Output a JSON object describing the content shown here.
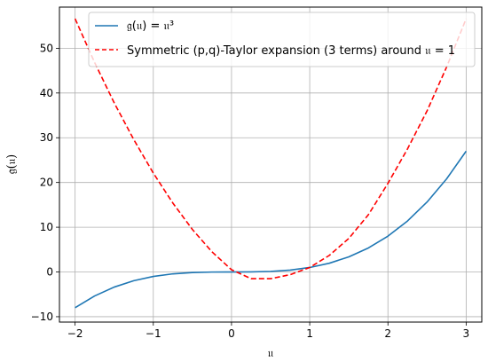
{
  "chart_data": {
    "type": "line",
    "title": "",
    "xlabel": "𝔲",
    "ylabel": "𝔤(𝔲)",
    "xlim": [
      -2.2,
      3.2
    ],
    "ylim": [
      -11.2,
      59.2
    ],
    "xticks": [
      -2,
      -1,
      0,
      1,
      2,
      3
    ],
    "xtick_labels": [
      "−2",
      "−1",
      "0",
      "1",
      "2",
      "3"
    ],
    "yticks": [
      -10,
      0,
      10,
      20,
      30,
      40,
      50
    ],
    "ytick_labels": [
      "−10",
      "0",
      "10",
      "20",
      "30",
      "40",
      "50"
    ],
    "grid": true,
    "legend_position": "top-center",
    "series": [
      {
        "name": "𝔤(𝔲) = 𝔲³",
        "style": "solid",
        "color": "#1f77b4",
        "x": [
          -2.0,
          -1.75,
          -1.5,
          -1.25,
          -1.0,
          -0.75,
          -0.5,
          -0.25,
          0.0,
          0.25,
          0.5,
          0.75,
          1.0,
          1.25,
          1.5,
          1.75,
          2.0,
          2.25,
          2.5,
          2.75,
          3.0
        ],
        "y": [
          -8.0,
          -5.36,
          -3.38,
          -1.95,
          -1.0,
          -0.42,
          -0.13,
          -0.02,
          0.0,
          0.02,
          0.13,
          0.42,
          1.0,
          1.95,
          3.38,
          5.36,
          8.0,
          11.39,
          15.63,
          20.8,
          27.0
        ]
      },
      {
        "name": "Symmetric (p,q)-Taylor expansion (3 terms) around 𝔲 = 1",
        "style": "dashed",
        "color": "#ff0000",
        "x": [
          -2.0,
          -1.75,
          -1.5,
          -1.25,
          -1.0,
          -0.75,
          -0.5,
          -0.25,
          0.0,
          0.25,
          0.5,
          0.75,
          1.0,
          1.25,
          1.5,
          1.75,
          2.0,
          2.25,
          2.5,
          2.75,
          3.0
        ],
        "y": [
          56.6,
          46.8,
          37.8,
          29.6,
          22.1,
          15.4,
          9.5,
          4.5,
          0.5,
          -1.5,
          -1.5,
          -0.6,
          1.0,
          3.7,
          7.5,
          12.8,
          19.8,
          27.5,
          36.0,
          45.8,
          56.6
        ]
      }
    ]
  }
}
